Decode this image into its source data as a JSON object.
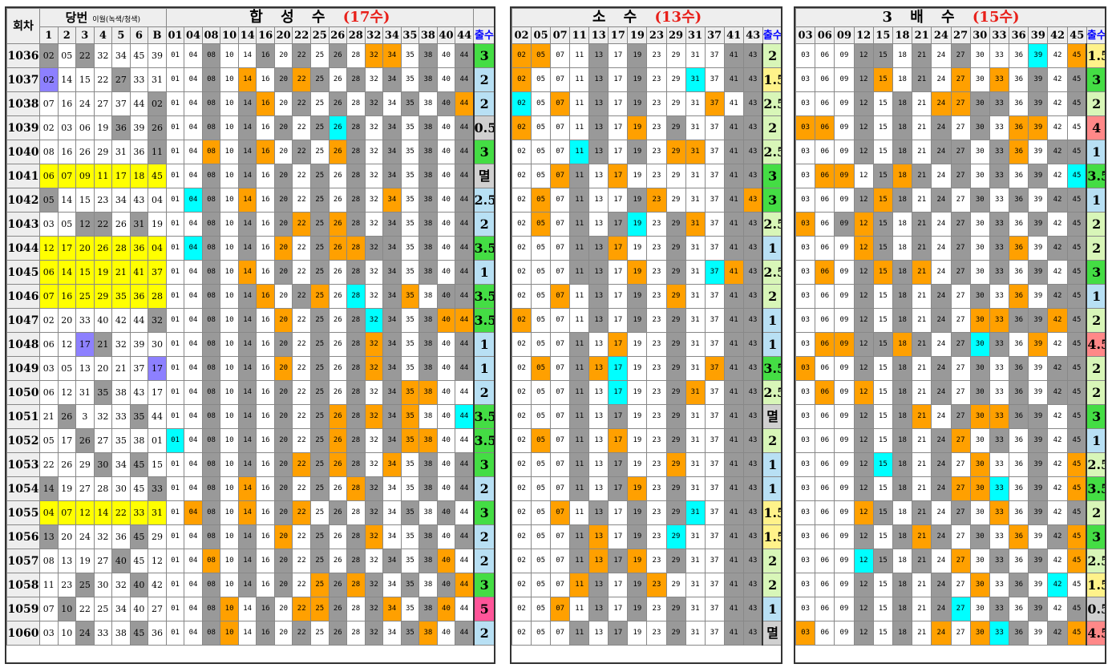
{
  "headers": {
    "round_label": "회차",
    "win_label": "당번",
    "win_sub": "이월(녹색/청색)",
    "win_cols": [
      "1",
      "2",
      "3",
      "4",
      "5",
      "6",
      "B"
    ],
    "count_label": "출수",
    "sections": [
      {
        "key": "h",
        "name": "합 성 수",
        "count": "(17수)"
      },
      {
        "key": "s",
        "name": "소 수",
        "count": "(13수)"
      },
      {
        "key": "m",
        "name": "3 배 수",
        "count": "(15수)"
      }
    ]
  },
  "legend_colors": {
    "orange": "#ffa000",
    "cyan": "#00ffff",
    "green": "#00dd33",
    "yellow": "#ffff00",
    "blue": "#8d80ff",
    "gray": "#999999"
  },
  "section_numbers": {
    "h": [
      "01",
      "04",
      "08",
      "10",
      "14",
      "16",
      "20",
      "22",
      "25",
      "26",
      "28",
      "32",
      "34",
      "35",
      "38",
      "40",
      "44"
    ],
    "s": [
      "02",
      "05",
      "07",
      "11",
      "13",
      "17",
      "19",
      "23",
      "29",
      "31",
      "37",
      "41",
      "43"
    ],
    "m": [
      "03",
      "06",
      "09",
      "12",
      "15",
      "18",
      "21",
      "24",
      "27",
      "30",
      "33",
      "36",
      "39",
      "42",
      "45"
    ]
  },
  "rows": [
    {
      "round": "1036",
      "nums": [
        "02",
        "05",
        "22",
        "32",
        "34",
        "45",
        "39"
      ],
      "nc": "gwgwwww",
      "h": "wwgwwgwgwgwoowgwg",
      "hc": "3",
      "hcc": "c3",
      "s": "oowwgwgwwwwgg",
      "sc": "2",
      "scc": "c2",
      "m": "wwwggwgwgwwwcwo",
      "mc": "1.5",
      "mcc": "c6"
    },
    {
      "round": "1037",
      "nums": [
        "02",
        "14",
        "15",
        "22",
        "27",
        "33",
        "31"
      ],
      "nc": "pwwwgww",
      "h": "wwgwowgogwgwgwgwg",
      "hc": "2",
      "hcc": "c1",
      "s": "owwwgwgwwcwgg",
      "sc": "1.5",
      "scc": "c6",
      "m": "wwwgowgwowowgwg",
      "mc": "3",
      "mcc": "c3"
    },
    {
      "round": "1038",
      "nums": [
        "07",
        "16",
        "24",
        "27",
        "37",
        "44",
        "02"
      ],
      "nc": "wwwwwwg",
      "h": "wwgwgowgwgwgwgwgo",
      "hc": "2",
      "hcc": "c1",
      "s": "cwowgwgwwwowg",
      "sc": "2.5",
      "scc": "c2",
      "m": "wwwgwgwooggwgwg",
      "mc": "2",
      "mcc": "c2"
    },
    {
      "round": "1039",
      "nums": [
        "02",
        "03",
        "06",
        "19",
        "36",
        "39",
        "26"
      ],
      "nc": "wwwwgwg",
      "h": "wwgwgwgwgcgwgwgwg",
      "hc": "0.5",
      "hcc": "cm",
      "s": "owwwgwowgwwgg",
      "sc": "2",
      "scc": "c2",
      "m": "oowgwgwgwgwooww",
      "mc": "4",
      "mcc": "c4"
    },
    {
      "round": "1040",
      "nums": [
        "08",
        "16",
        "26",
        "29",
        "31",
        "36",
        "11"
      ],
      "nc": "wwwwwwg",
      "h": "wwowgowgwogwgwgwg",
      "hc": "3",
      "hcc": "c3",
      "s": "wwwcgwgwoowgg",
      "sc": "2.5",
      "scc": "c2",
      "m": "wwwgwgwggwgowgg",
      "mc": "1",
      "mcc": "c1"
    },
    {
      "round": "1041",
      "nums": [
        "06",
        "07",
        "09",
        "11",
        "17",
        "18",
        "45"
      ],
      "nc": "yyyyyyy",
      "h": "wwgwgwgwgwgwgwgwg",
      "hc": "멸",
      "hcc": "cm",
      "s": "wwogwowwwwwgg",
      "sc": "3",
      "scc": "c3",
      "m": "woowgogwgwgwgwc",
      "mc": "3.5",
      "mcc": "c3"
    },
    {
      "round": "1042",
      "nums": [
        "05",
        "14",
        "15",
        "23",
        "34",
        "43",
        "04"
      ],
      "nc": "gwwwwww",
      "h": "wcgwowgwgwgwowgwg",
      "hc": "2.5",
      "hcc": "c1",
      "s": "wowgwwgowwwgo",
      "sc": "3",
      "scc": "c3",
      "m": "wwwgogwgwgwgwgg",
      "mc": "1",
      "mcc": "c1"
    },
    {
      "round": "1043",
      "nums": [
        "03",
        "05",
        "12",
        "22",
        "26",
        "31",
        "19"
      ],
      "nc": "wwggwgw",
      "h": "wwgwgwgogogwgwgwg",
      "hc": "2",
      "hcc": "c1",
      "s": "wowgwgcwgowgg",
      "sc": "2.5",
      "scc": "c2",
      "m": "owgogwgwgwgwgwg",
      "mc": "2",
      "mcc": "c2"
    },
    {
      "round": "1044",
      "nums": [
        "12",
        "17",
        "20",
        "26",
        "28",
        "36",
        "04"
      ],
      "nc": "yyyyyyy",
      "h": "wcgwgwowgooggwgwg",
      "hc": "3.5",
      "hcc": "c3",
      "s": "wwwggowwgwwgg",
      "sc": "1",
      "scc": "c1",
      "m": "wwwogwgwgwgowgg",
      "mc": "2",
      "mcc": "c2"
    },
    {
      "round": "1045",
      "nums": [
        "06",
        "14",
        "15",
        "19",
        "21",
        "41",
        "37"
      ],
      "nc": "yyyyyyy",
      "h": "wwgwowgwgwgwgwgwg",
      "hc": "1",
      "hcc": "c1",
      "s": "wwwggwowgwcog",
      "sc": "2.5",
      "scc": "c2",
      "m": "wowgogowgwgwgwg",
      "mc": "3",
      "mcc": "c3"
    },
    {
      "round": "1046",
      "nums": [
        "07",
        "16",
        "25",
        "29",
        "35",
        "36",
        "28"
      ],
      "nc": "yyyyyyy",
      "h": "wwgwgowgowcwgowgg",
      "hc": "3.5",
      "hcc": "c3",
      "s": "wwowgwgwowwgg",
      "sc": "2",
      "scc": "c2",
      "m": "wwwgwgwgwgwowgg",
      "mc": "1",
      "mcc": "c1"
    },
    {
      "round": "1047",
      "nums": [
        "02",
        "20",
        "33",
        "40",
        "42",
        "44",
        "32"
      ],
      "nc": "wwwwwwg",
      "h": "wwgwgwowgwgcgwgoo",
      "hc": "3.5",
      "hcc": "c3",
      "s": "owwwgwgwgwwgg",
      "sc": "1",
      "scc": "c1",
      "m": "wwwgwgwgwooggog",
      "mc": "2",
      "mcc": "c2"
    },
    {
      "round": "1048",
      "nums": [
        "06",
        "12",
        "17",
        "21",
        "32",
        "39",
        "30"
      ],
      "nc": "wwpgwww",
      "h": "wwgwgwgwgwgogwgwg",
      "hc": "1",
      "hcc": "c1",
      "s": "wwwgwowwgwwgg",
      "sc": "1",
      "scc": "c1",
      "m": "wooggogwgcgwowg",
      "mc": "4.5",
      "mcc": "c4"
    },
    {
      "round": "1049",
      "nums": [
        "03",
        "05",
        "13",
        "20",
        "21",
        "37",
        "17"
      ],
      "nc": "wwwwwwp",
      "h": "wwgwgwowgwgogwgwg",
      "hc": "1",
      "hcc": "c1",
      "s": "wowgocwwgwogg",
      "sc": "3.5",
      "scc": "c3",
      "m": "owwgwgwgwgwgwgg",
      "mc": "2",
      "mcc": "c2"
    },
    {
      "round": "1050",
      "nums": [
        "06",
        "12",
        "31",
        "35",
        "38",
        "43",
        "17"
      ],
      "nc": "wwwgwww",
      "h": "wwgwgwgwgwgwgooww",
      "hc": "2",
      "hcc": "c1",
      "s": "wwwgwcwwgowgg",
      "sc": "2.5",
      "scc": "c2",
      "m": "woworgwgwgwgwgg",
      "mc": "2",
      "mcc": "c2"
    },
    {
      "round": "1051",
      "nums": [
        "21",
        "26",
        "3",
        "32",
        "33",
        "35",
        "44"
      ],
      "nc": "wgwwwgw",
      "h": "wwgwgwgwgogogowwc",
      "hc": "3.5",
      "hcc": "c3",
      "s": "wwwgwgwwgwwgg",
      "sc": "멸",
      "scc": "cm",
      "m": "wwwgwgowgooggwg",
      "mc": "3",
      "mcc": "c3"
    },
    {
      "round": "1052",
      "nums": [
        "05",
        "17",
        "26",
        "27",
        "35",
        "38",
        "01"
      ],
      "nc": "wwgwwww",
      "h": "cwgwgwgwgogwgooww",
      "hc": "3.5",
      "hcc": "c3",
      "s": "wowgwowwgwwgg",
      "sc": "2",
      "scc": "c2",
      "m": "wwwgwgwgowgwgwg",
      "mc": "1",
      "mcc": "c1"
    },
    {
      "round": "1053",
      "nums": [
        "22",
        "26",
        "29",
        "30",
        "34",
        "45",
        "15"
      ],
      "nc": "wwwgwgw",
      "h": "wwgwgwgogogwowgwg",
      "hc": "3",
      "hcc": "c3",
      "s": "wwwgwgwwowwgg",
      "sc": "1",
      "scc": "c1",
      "m": "wwwgcgwgwowwgwo",
      "mc": "2.5",
      "mcc": "c2"
    },
    {
      "round": "1054",
      "nums": [
        "14",
        "19",
        "27",
        "28",
        "30",
        "45",
        "33"
      ],
      "nc": "gwwwwwg",
      "h": "wwgwowgwgwogwwgwg",
      "hc": "2",
      "hcc": "c1",
      "s": "wwwgwgowgwwgg",
      "sc": "1",
      "scc": "c1",
      "m": "wwwgwgwgoocwgwo",
      "mc": "3.5",
      "mcc": "c3"
    },
    {
      "round": "1055",
      "nums": [
        "04",
        "07",
        "12",
        "14",
        "22",
        "33",
        "31"
      ],
      "nc": "yyyyyyy",
      "h": "wogwowgowgwgwgwgw",
      "hc": "3",
      "hcc": "c3",
      "s": "wwowgwgwgcwgg",
      "sc": "1.5",
      "scc": "c6",
      "m": "wwwogwgwgwowgwg",
      "mc": "2",
      "mcc": "c2"
    },
    {
      "round": "1056",
      "nums": [
        "13",
        "20",
        "24",
        "32",
        "36",
        "45",
        "29"
      ],
      "nc": "gwwwwgw",
      "h": "wwgwgwowgwgowwgwg",
      "hc": "2",
      "hcc": "c1",
      "s": "wwwgowgwcwwgg",
      "sc": "1.5",
      "scc": "c6",
      "m": "wwwgwgogwgwowgo",
      "mc": "3",
      "mcc": "c3"
    },
    {
      "round": "1057",
      "nums": [
        "08",
        "13",
        "19",
        "27",
        "40",
        "45",
        "12"
      ],
      "nc": "wwwwgww",
      "h": "wwowgwgwgwgwgwgow",
      "hc": "2",
      "hcc": "c1",
      "s": "wwwgogowgwwgg",
      "sc": "2",
      "scc": "c2",
      "m": "wwwcgwgwowgwgwo",
      "mc": "2.5",
      "mcc": "c2"
    },
    {
      "round": "1058",
      "nums": [
        "11",
        "23",
        "25",
        "30",
        "32",
        "40",
        "42"
      ],
      "nc": "wwgwwgw",
      "h": "wwgwgwgwogogwgwgo",
      "hc": "3",
      "hcc": "c3",
      "s": "wwwogwgowwwgg",
      "sc": "2",
      "scc": "c2",
      "m": "wwwgwgwgwowgwcw",
      "mc": "1.5",
      "mcc": "c6"
    },
    {
      "round": "1059",
      "nums": [
        "07",
        "10",
        "22",
        "25",
        "34",
        "40",
        "27"
      ],
      "nc": "wgwwwww",
      "h": "wwgowgwoogwgowgow",
      "hc": "5",
      "hcc": "c5",
      "s": "wwowgwgwgwwgg",
      "sc": "1",
      "scc": "c1",
      "m": "wwwgwgwgcwgwgwg",
      "mc": "0.5",
      "mcc": "cm"
    },
    {
      "round": "1060",
      "nums": [
        "03",
        "10",
        "24",
        "33",
        "38",
        "45",
        "36"
      ],
      "nc": "wwgwwgw",
      "h": "wwgowgwgwgwgwgowg",
      "hc": "2",
      "hcc": "c1",
      "s": "wwwgwgwwgwwgg",
      "sc": "멸",
      "scc": "cm",
      "m": "owwgwgwowocgwgo",
      "mc": "4.5",
      "mcc": "c4"
    }
  ]
}
